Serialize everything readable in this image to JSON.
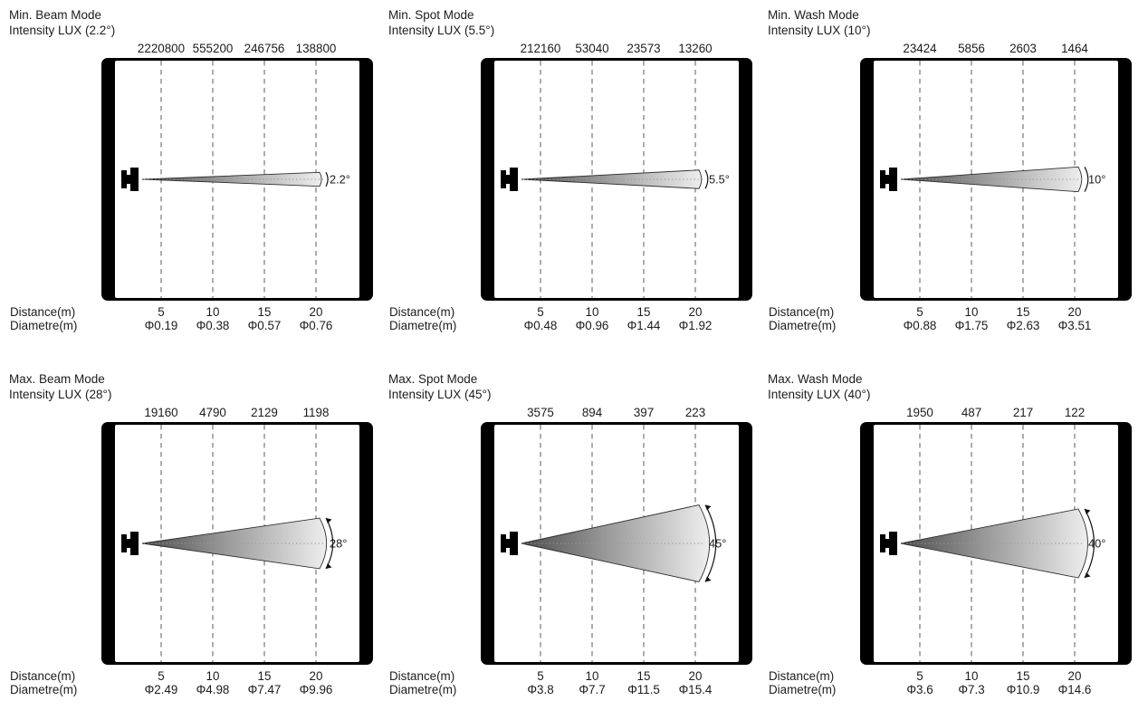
{
  "labels": {
    "distance_label": "Distance(m)",
    "diameter_label": "Diametre(m)"
  },
  "style": {
    "background": "#ffffff",
    "outline": "#000000",
    "grid_line": "#8a8a8a",
    "axis_dots": "#9a9a9a",
    "text": "#1c1c1c",
    "beam_gradient": [
      "#4d4d4d",
      "#999999",
      "#eeeeee"
    ]
  },
  "chart_data": [
    {
      "type": "area",
      "title": "Min. Beam Mode",
      "subtitle": "Intensity LUX (2.2°)",
      "beam_angle_deg": 2.2,
      "angle_label": "2.2°",
      "x_distances_m": [
        5,
        10,
        15,
        20
      ],
      "intensity_lux": [
        2220800,
        555200,
        246756,
        138800
      ],
      "diameter_m": [
        0.19,
        0.38,
        0.57,
        0.76
      ],
      "diameter_labels": [
        "Φ0.19",
        "Φ0.38",
        "Φ0.57",
        "Φ0.76"
      ]
    },
    {
      "type": "area",
      "title": "Min. Spot Mode",
      "subtitle": "Intensity LUX (5.5°)",
      "beam_angle_deg": 5.5,
      "angle_label": "5.5°",
      "x_distances_m": [
        5,
        10,
        15,
        20
      ],
      "intensity_lux": [
        212160,
        53040,
        23573,
        13260
      ],
      "diameter_m": [
        0.48,
        0.96,
        1.44,
        1.92
      ],
      "diameter_labels": [
        "Φ0.48",
        "Φ0.96",
        "Φ1.44",
        "Φ1.92"
      ]
    },
    {
      "type": "area",
      "title": "Min. Wash Mode",
      "subtitle": "Intensity LUX (10°)",
      "beam_angle_deg": 10,
      "angle_label": "10°",
      "x_distances_m": [
        5,
        10,
        15,
        20
      ],
      "intensity_lux": [
        23424,
        5856,
        2603,
        1464
      ],
      "diameter_m": [
        0.88,
        1.75,
        2.63,
        3.51
      ],
      "diameter_labels": [
        "Φ0.88",
        "Φ1.75",
        "Φ2.63",
        "Φ3.51"
      ]
    },
    {
      "type": "area",
      "title": "Max. Beam Mode",
      "subtitle": "Intensity LUX (28°)",
      "beam_angle_deg": 28,
      "angle_label": "28°",
      "x_distances_m": [
        5,
        10,
        15,
        20
      ],
      "intensity_lux": [
        19160,
        4790,
        2129,
        1198
      ],
      "diameter_m": [
        2.49,
        4.98,
        7.47,
        9.96
      ],
      "diameter_labels": [
        "Φ2.49",
        "Φ4.98",
        "Φ7.47",
        "Φ9.96"
      ]
    },
    {
      "type": "area",
      "title": "Max. Spot Mode",
      "subtitle": "Intensity LUX (45°)",
      "beam_angle_deg": 45,
      "angle_label": "45°",
      "x_distances_m": [
        5,
        10,
        15,
        20
      ],
      "intensity_lux": [
        3575,
        894,
        397,
        223
      ],
      "diameter_m": [
        3.8,
        7.7,
        11.5,
        15.4
      ],
      "diameter_labels": [
        "Φ3.8",
        "Φ7.7",
        "Φ11.5",
        "Φ15.4"
      ]
    },
    {
      "type": "area",
      "title": "Max. Wash Mode",
      "subtitle": "Intensity LUX (40°)",
      "beam_angle_deg": 40,
      "angle_label": "40°",
      "x_distances_m": [
        5,
        10,
        15,
        20
      ],
      "intensity_lux": [
        1950,
        487,
        217,
        122
      ],
      "diameter_m": [
        3.6,
        7.3,
        10.9,
        14.6
      ],
      "diameter_labels": [
        "Φ3.6",
        "Φ7.3",
        "Φ10.9",
        "Φ14.6"
      ]
    }
  ]
}
